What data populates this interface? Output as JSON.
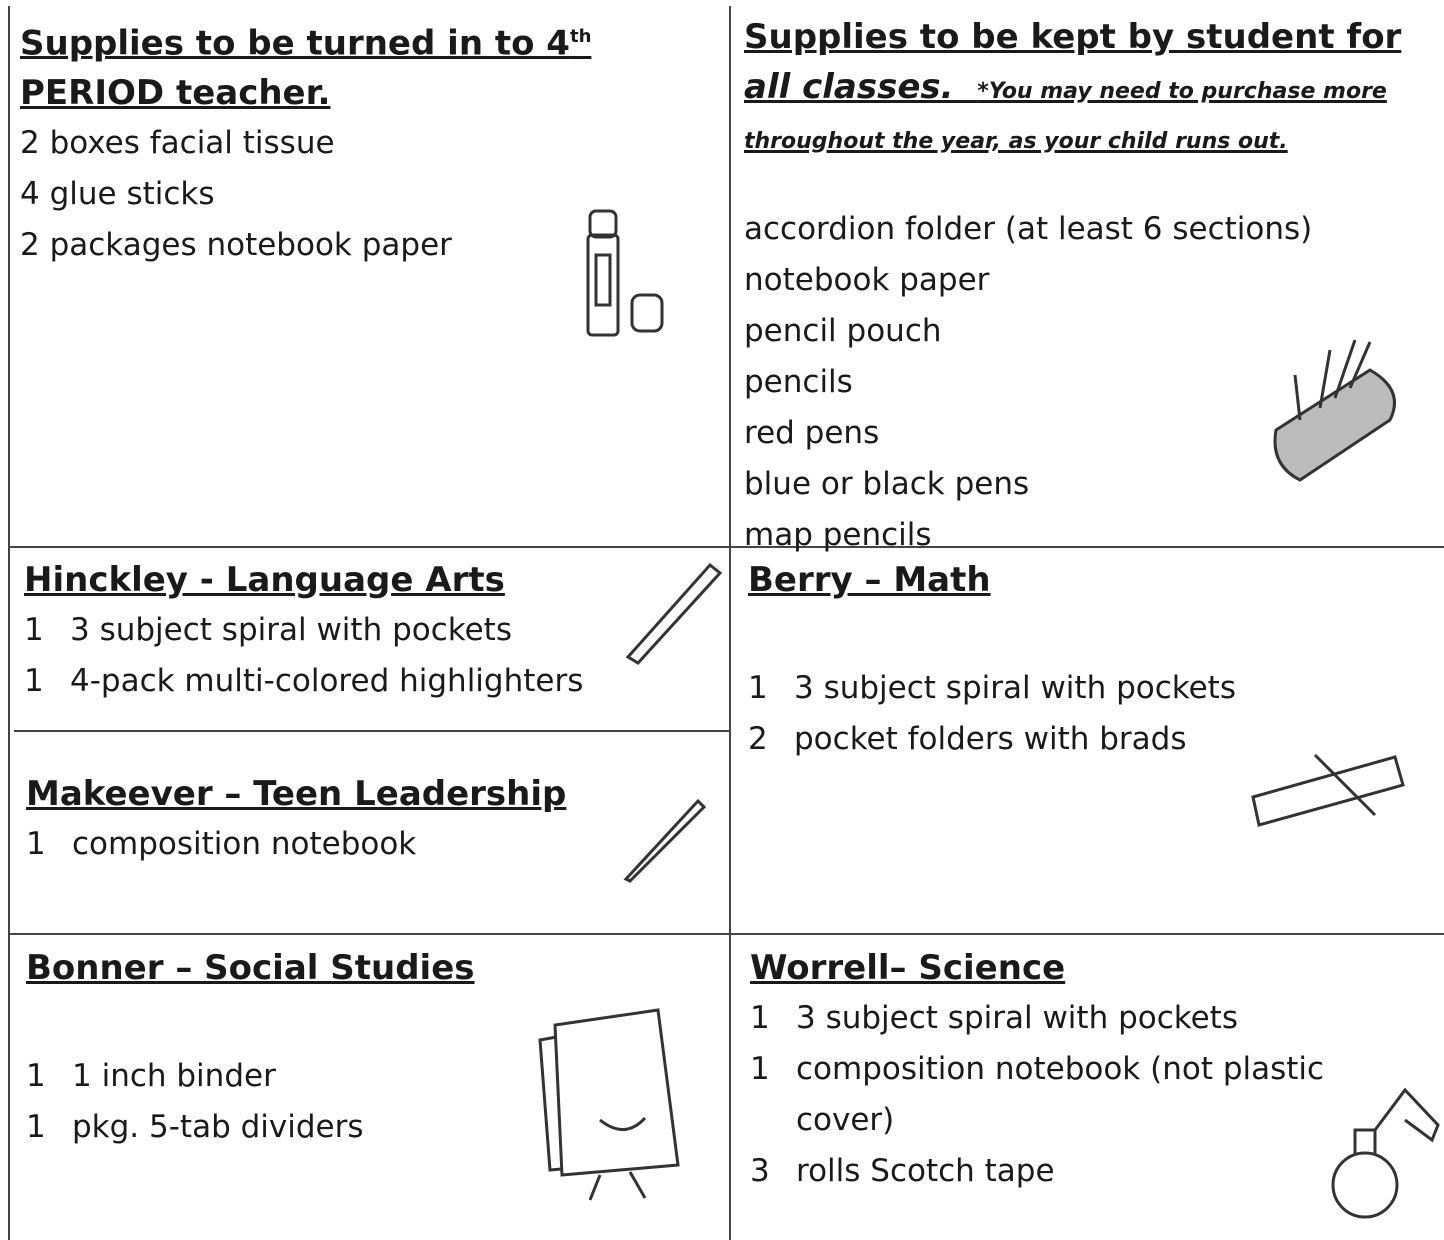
{
  "supplies_turned_in": {
    "heading_main": "Supplies to be turned in to 4",
    "heading_sup": "th",
    "heading_end": "PERIOD teacher.",
    "items": [
      "2 boxes facial tissue",
      "4 glue sticks",
      "2 packages notebook paper"
    ]
  },
  "supplies_kept": {
    "heading_main": "Supplies to be kept by student for",
    "heading_italic": "all classes.",
    "note": "*You may need to purchase more throughout the year, as your child runs out.",
    "items": [
      "accordion folder (at least 6 sections)",
      "notebook paper",
      "pencil pouch",
      "pencils",
      "red pens",
      "blue or black pens",
      "map pencils"
    ]
  },
  "hinckley": {
    "heading": "Hinckley - Language Arts",
    "items": [
      {
        "qty": "1",
        "text": "3 subject spiral with pockets"
      },
      {
        "qty": "1",
        "text": "4-pack multi-colored highlighters"
      }
    ]
  },
  "makeever": {
    "heading": "Makeever – Teen Leadership",
    "items": [
      {
        "qty": "1",
        "text": "composition notebook"
      }
    ]
  },
  "berry": {
    "heading": "Berry – Math",
    "items": [
      {
        "qty": "1",
        "text": "3 subject spiral with pockets"
      },
      {
        "qty": "2",
        "text": "pocket folders with brads"
      }
    ]
  },
  "bonner": {
    "heading": "Bonner – Social Studies",
    "items": [
      {
        "qty": "1",
        "text": "1 inch binder"
      },
      {
        "qty": "1",
        "text": "pkg. 5-tab dividers"
      }
    ]
  },
  "worrell": {
    "heading": "Worrell– Science",
    "items": [
      {
        "qty": "1",
        "text": "3 subject spiral with pockets"
      },
      {
        "qty": "1",
        "text": "composition notebook (not plastic cover)"
      },
      {
        "qty": "3",
        "text": "rolls Scotch tape"
      }
    ]
  }
}
